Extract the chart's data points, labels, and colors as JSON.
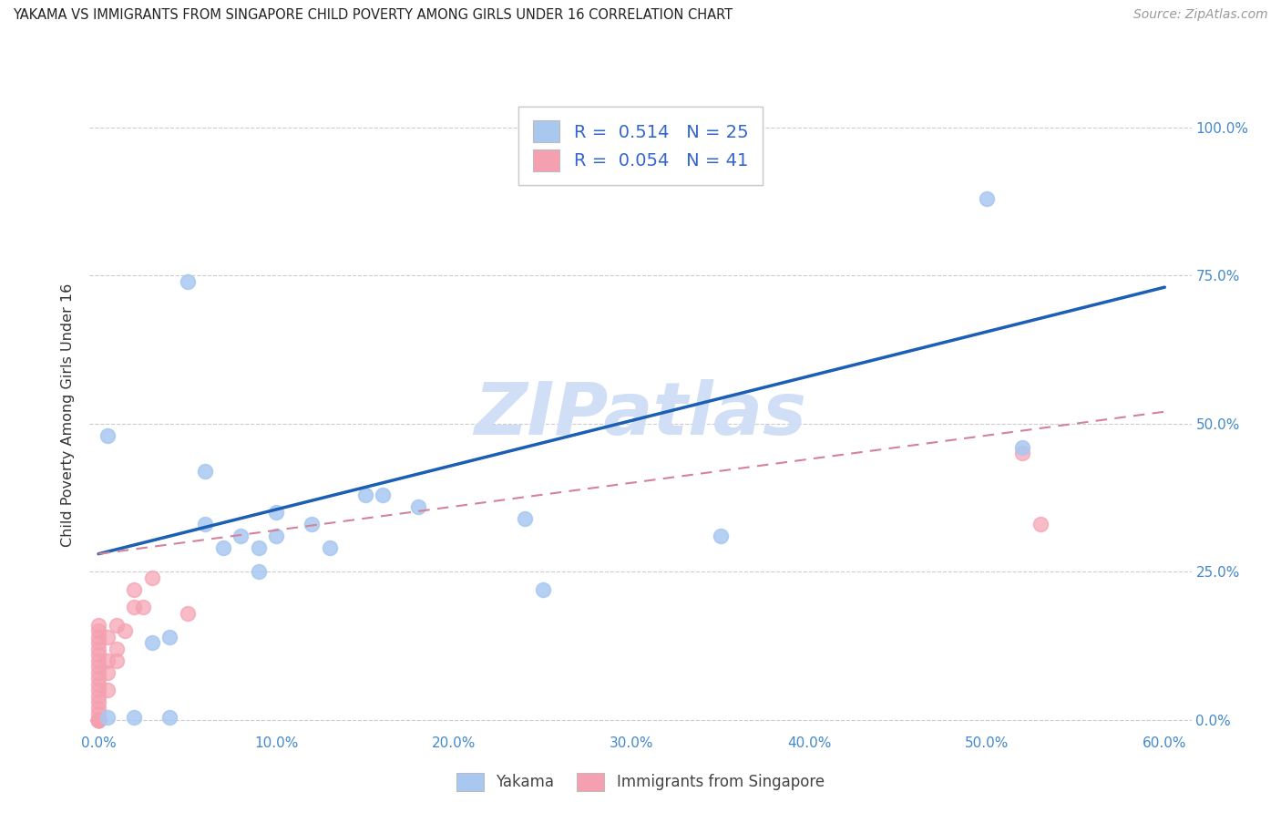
{
  "title": "YAKAMA VS IMMIGRANTS FROM SINGAPORE CHILD POVERTY AMONG GIRLS UNDER 16 CORRELATION CHART",
  "source": "Source: ZipAtlas.com",
  "xlabel_ticks": [
    "0.0%",
    "10.0%",
    "20.0%",
    "30.0%",
    "40.0%",
    "50.0%",
    "60.0%"
  ],
  "ylabel_ticks": [
    "0.0%",
    "25.0%",
    "50.0%",
    "75.0%",
    "100.0%"
  ],
  "xlabel_values": [
    0.0,
    0.1,
    0.2,
    0.3,
    0.4,
    0.5,
    0.6
  ],
  "ylabel_values": [
    0.0,
    0.25,
    0.5,
    0.75,
    1.0
  ],
  "xlim": [
    -0.005,
    0.615
  ],
  "ylim": [
    -0.02,
    1.05
  ],
  "yakama_R": 0.514,
  "yakama_N": 25,
  "singapore_R": 0.054,
  "singapore_N": 41,
  "yakama_color": "#a8c8f0",
  "singapore_color": "#f5a0b0",
  "trend_yakama_color": "#1a5fb4",
  "trend_singapore_color": "#d4829a",
  "watermark": "ZIPatlas",
  "watermark_color": "#d0dff5",
  "yakama_x": [
    0.005,
    0.005,
    0.02,
    0.04,
    0.05,
    0.06,
    0.06,
    0.07,
    0.08,
    0.09,
    0.09,
    0.1,
    0.1,
    0.12,
    0.13,
    0.15,
    0.16,
    0.18,
    0.24,
    0.25,
    0.35,
    0.5,
    0.52,
    0.03,
    0.04
  ],
  "yakama_y": [
    0.48,
    0.005,
    0.005,
    0.005,
    0.74,
    0.33,
    0.42,
    0.29,
    0.31,
    0.25,
    0.29,
    0.31,
    0.35,
    0.33,
    0.29,
    0.38,
    0.38,
    0.36,
    0.34,
    0.22,
    0.31,
    0.88,
    0.46,
    0.13,
    0.14
  ],
  "singapore_x": [
    0.0,
    0.0,
    0.0,
    0.0,
    0.0,
    0.0,
    0.0,
    0.0,
    0.0,
    0.0,
    0.0,
    0.0,
    0.0,
    0.0,
    0.0,
    0.0,
    0.0,
    0.0,
    0.0,
    0.0,
    0.0,
    0.0,
    0.0,
    0.0,
    0.0,
    0.0,
    0.005,
    0.005,
    0.005,
    0.005,
    0.01,
    0.01,
    0.01,
    0.015,
    0.02,
    0.02,
    0.025,
    0.03,
    0.05,
    0.52,
    0.53
  ],
  "singapore_y": [
    0.0,
    0.0,
    0.0,
    0.0,
    0.0,
    0.0,
    0.0,
    0.0,
    0.0,
    0.0,
    0.01,
    0.02,
    0.03,
    0.04,
    0.05,
    0.06,
    0.07,
    0.08,
    0.09,
    0.1,
    0.11,
    0.12,
    0.13,
    0.14,
    0.15,
    0.16,
    0.05,
    0.08,
    0.1,
    0.14,
    0.1,
    0.12,
    0.16,
    0.15,
    0.19,
    0.22,
    0.19,
    0.24,
    0.18,
    0.45,
    0.33
  ],
  "trend_yakama_x0": 0.0,
  "trend_yakama_y0": 0.28,
  "trend_yakama_x1": 0.6,
  "trend_yakama_y1": 0.73,
  "trend_singapore_x0": 0.0,
  "trend_singapore_y0": 0.28,
  "trend_singapore_x1": 0.6,
  "trend_singapore_y1": 0.52
}
